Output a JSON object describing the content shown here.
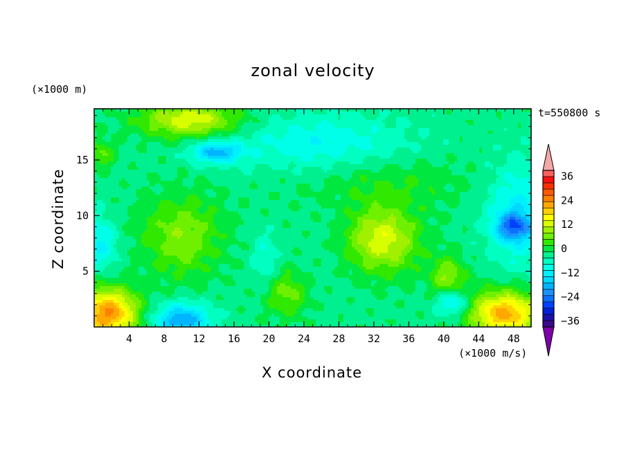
{
  "chart_data": {
    "type": "heatmap",
    "title": "zonal velocity",
    "xlabel": "X coordinate",
    "ylabel": "Z coordinate",
    "x_unit": "(×1000 m/s)",
    "y_unit": "(×1000 m)",
    "time": "t=550800 s",
    "xlim": [
      0,
      50
    ],
    "ylim": [
      0,
      19.6
    ],
    "x_ticks": [
      4,
      8,
      12,
      16,
      20,
      24,
      28,
      32,
      36,
      40,
      44,
      48
    ],
    "x_tick_labels": [
      "4",
      "8",
      "12",
      "16",
      "20",
      "24",
      "28",
      "32",
      "36",
      "40",
      "44",
      "48"
    ],
    "y_ticks": [
      5,
      10,
      15
    ],
    "y_tick_labels": [
      "5",
      "10",
      "15"
    ],
    "colorbar": {
      "levels": [
        -42,
        -39,
        -36,
        -33,
        -30,
        -27,
        -24,
        -21,
        -18,
        -15,
        -12,
        -9,
        -6,
        -3,
        0,
        3,
        6,
        9,
        12,
        15,
        18,
        21,
        24,
        27,
        30,
        33,
        36,
        39,
        42
      ],
      "tick_values": [
        36,
        24,
        12,
        0,
        -12,
        -24,
        -36
      ],
      "tick_labels": [
        "36",
        "24",
        "12",
        "0",
        "−12",
        "−24",
        "−36"
      ],
      "colors": [
        "#7d00a8",
        "#3a0a8c",
        "#1a10a8",
        "#0020d8",
        "#0040ff",
        "#0a70ff",
        "#1e90ff",
        "#00b4ff",
        "#00d8ff",
        "#00f0ff",
        "#00ffe8",
        "#00ffc0",
        "#00f090",
        "#00e840",
        "#30e800",
        "#6ef000",
        "#a0f000",
        "#d8ff00",
        "#ffff00",
        "#ffd000",
        "#ffa800",
        "#ff8000",
        "#ff5a00",
        "#ff3000",
        "#ff1010",
        "#ff6060",
        "#f4a8a8"
      ],
      "extend": "both"
    },
    "features": [
      {
        "x": 1.5,
        "z": 1.2,
        "u": 24,
        "sx": 3.5,
        "sz": 2.2
      },
      {
        "x": 10,
        "z": 0.6,
        "u": -18,
        "sx": 3.2,
        "sz": 1.5
      },
      {
        "x": 10,
        "z": 8.2,
        "u": 8,
        "sx": 4.5,
        "sz": 3.6
      },
      {
        "x": 22,
        "z": 3.0,
        "u": 7,
        "sx": 2.5,
        "sz": 2.0
      },
      {
        "x": 33,
        "z": 7.8,
        "u": 14,
        "sx": 4.0,
        "sz": 2.8
      },
      {
        "x": 40.5,
        "z": 4.5,
        "u": 9,
        "sx": 2.0,
        "sz": 1.8
      },
      {
        "x": 47,
        "z": 1.2,
        "u": 22,
        "sx": 4.0,
        "sz": 2.0
      },
      {
        "x": 11,
        "z": 18.6,
        "u": 14,
        "sx": 5.5,
        "sz": 1.6
      },
      {
        "x": 14,
        "z": 15.7,
        "u": -16,
        "sx": 2.8,
        "sz": 1.0
      },
      {
        "x": 26,
        "z": 16.5,
        "u": -9,
        "sx": 10,
        "sz": 2.5
      },
      {
        "x": 48.5,
        "z": 10,
        "u": -11,
        "sx": 3.5,
        "sz": 4.5
      },
      {
        "x": 48,
        "z": 9.0,
        "u": -17,
        "sx": 2.0,
        "sz": 1.2
      },
      {
        "x": 0.8,
        "z": 7.5,
        "u": -10,
        "sx": 1.8,
        "sz": 2.5
      },
      {
        "x": 0.8,
        "z": 15.5,
        "u": 6,
        "sx": 1.5,
        "sz": 1.2
      },
      {
        "x": 33,
        "z": 13,
        "u": 3,
        "sx": 9,
        "sz": 2.5
      },
      {
        "x": 19.5,
        "z": 6.0,
        "u": -7,
        "sx": 1.5,
        "sz": 2.5
      },
      {
        "x": 41,
        "z": 2.2,
        "u": -13,
        "sx": 1.8,
        "sz": 1.2
      },
      {
        "x": 27,
        "z": 7.0,
        "u": -2,
        "sx": 3,
        "sz": 6
      }
    ],
    "background": -4
  }
}
